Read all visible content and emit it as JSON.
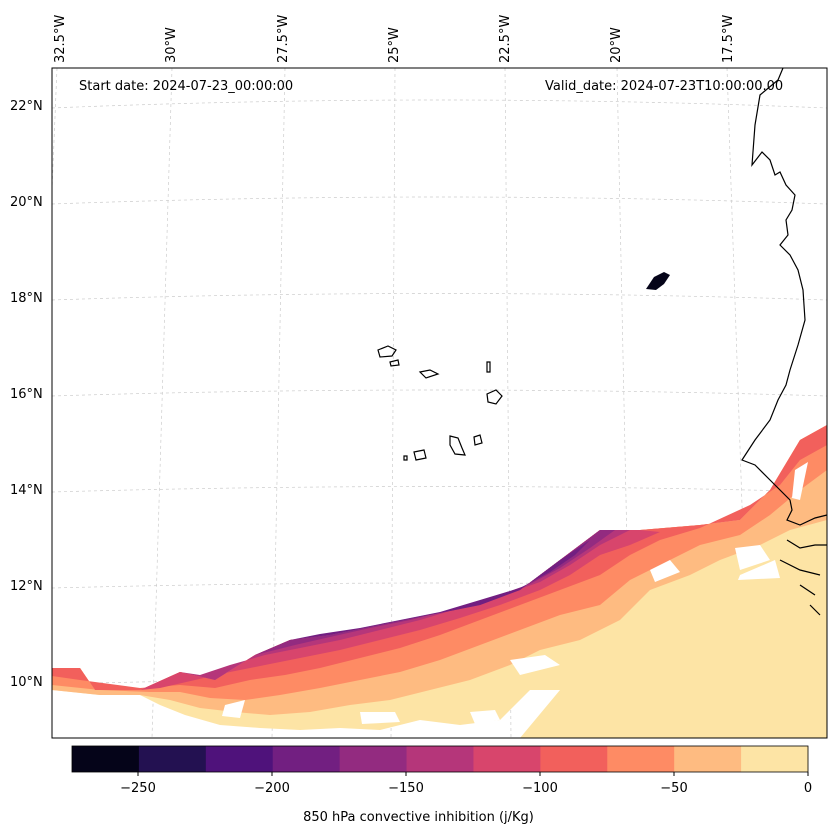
{
  "map": {
    "start_label": "Start date: 2024-07-23_00:00:00",
    "valid_label": "Valid_date: 2024-07-23T10:00:00.00",
    "lat_labels": [
      "22°N",
      "20°N",
      "18°N",
      "16°N",
      "14°N",
      "12°N",
      "10°N"
    ],
    "lon_labels": [
      "32.5°W",
      "30°W",
      "27.5°W",
      "25°W",
      "22.5°W",
      "20°W",
      "17.5°W"
    ]
  },
  "colorbar": {
    "title": "850 hPa convective inhibition (j/Kg)",
    "ticks": [
      "−250",
      "−200",
      "−150",
      "−100",
      "−50",
      "0"
    ],
    "colors": [
      "#050419",
      "#231151",
      "#4f127b",
      "#721f81",
      "#932b80",
      "#b5367a",
      "#d8456c",
      "#f2605c",
      "#fe8b64",
      "#febb81",
      "#fde4a5"
    ]
  }
}
